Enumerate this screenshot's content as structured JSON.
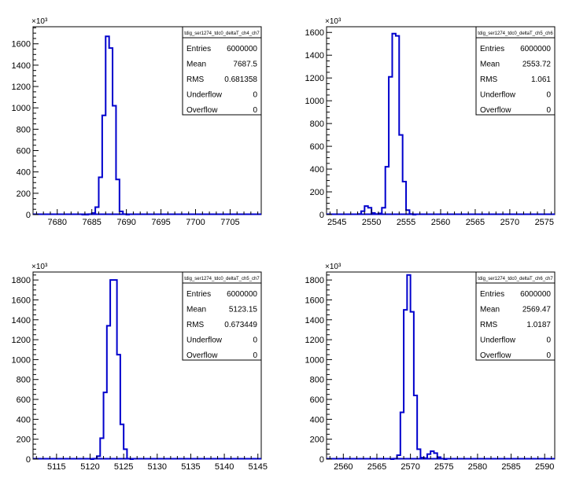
{
  "chart_data": [
    {
      "type": "histogram",
      "name": "tdig_ser1274_tdc0_deltaT_ch4_ch7",
      "xlim": [
        7676.5,
        7709.5
      ],
      "ylim": [
        0,
        1760
      ],
      "xticks": [
        "7680",
        "7685",
        "7690",
        "7695",
        "7700",
        "7705"
      ],
      "xtick_values": [
        7680,
        7685,
        7690,
        7695,
        7700,
        7705
      ],
      "yticks": [
        "0",
        "200",
        "400",
        "600",
        "800",
        "1000",
        "1200",
        "1400",
        "1600"
      ],
      "ytick_values": [
        0,
        200,
        400,
        600,
        800,
        1000,
        1200,
        1400,
        1600
      ],
      "y_exponent": "×10³",
      "x": [
        7683.5,
        7684.0,
        7684.5,
        7685.0,
        7685.5,
        7686.0,
        7686.5,
        7687.0,
        7687.5,
        7688.0,
        7688.5,
        7689.0,
        7689.5,
        7690.0
      ],
      "values": [
        0,
        0,
        5,
        15,
        70,
        350,
        930,
        1670,
        1560,
        1020,
        330,
        30,
        5,
        0
      ],
      "stats": {
        "title": "tdig_ser1274_tdc0_deltaT_ch4_ch7",
        "rows": [
          {
            "label": "Entries",
            "value": "6000000"
          },
          {
            "label": "Mean",
            "value": "7687.5"
          },
          {
            "label": "RMS",
            "value": "0.681358"
          },
          {
            "label": "Underflow",
            "value": "0"
          },
          {
            "label": "Overflow",
            "value": "0"
          }
        ]
      }
    },
    {
      "type": "histogram",
      "name": "tdig_ser1274_tdc0_deltaT_ch5_ch6",
      "xlim": [
        2543.5,
        2576.5
      ],
      "ylim": [
        0,
        1650
      ],
      "xticks": [
        "2545",
        "2550",
        "2555",
        "2560",
        "2565",
        "2570",
        "2575"
      ],
      "xtick_values": [
        2545,
        2550,
        2555,
        2560,
        2565,
        2570,
        2575
      ],
      "yticks": [
        "0",
        "200",
        "400",
        "600",
        "800",
        "1000",
        "1200",
        "1400",
        "1600"
      ],
      "ytick_values": [
        0,
        200,
        400,
        600,
        800,
        1000,
        1200,
        1400,
        1600
      ],
      "y_exponent": "×10³",
      "x": [
        2548.0,
        2548.5,
        2549.0,
        2549.5,
        2550.0,
        2550.5,
        2551.0,
        2551.5,
        2552.0,
        2552.5,
        2553.0,
        2553.5,
        2554.0,
        2554.5,
        2555.0,
        2555.5,
        2556.0
      ],
      "values": [
        5,
        30,
        75,
        60,
        15,
        5,
        10,
        60,
        420,
        1210,
        1590,
        1570,
        700,
        290,
        40,
        5,
        0
      ],
      "stats": {
        "title": "tdig_ser1274_tdc0_deltaT_ch5_ch6",
        "rows": [
          {
            "label": "Entries",
            "value": "6000000"
          },
          {
            "label": "Mean",
            "value": "2553.72"
          },
          {
            "label": "RMS",
            "value": "1.061"
          },
          {
            "label": "Underflow",
            "value": "0"
          },
          {
            "label": "Overflow",
            "value": "0"
          }
        ]
      }
    },
    {
      "type": "histogram",
      "name": "tdig_ser1274_tdc0_deltaT_ch5_ch7",
      "xlim": [
        5111.5,
        5145.5
      ],
      "ylim": [
        0,
        1880
      ],
      "xticks": [
        "5115",
        "5120",
        "5125",
        "5130",
        "5135",
        "5140",
        "5145"
      ],
      "xtick_values": [
        5115,
        5120,
        5125,
        5130,
        5135,
        5140,
        5145
      ],
      "yticks": [
        "0",
        "200",
        "400",
        "600",
        "800",
        "1000",
        "1200",
        "1400",
        "1600",
        "1800"
      ],
      "ytick_values": [
        0,
        200,
        400,
        600,
        800,
        1000,
        1200,
        1400,
        1600,
        1800
      ],
      "y_exponent": "×10³",
      "x": [
        5120.0,
        5120.5,
        5121.0,
        5121.5,
        5122.0,
        5122.5,
        5123.0,
        5123.5,
        5124.0,
        5124.5,
        5125.0,
        5125.5,
        5126.0
      ],
      "values": [
        0,
        5,
        30,
        210,
        670,
        1340,
        1800,
        1800,
        1050,
        350,
        100,
        5,
        0
      ],
      "stats": {
        "title": "tdig_ser1274_tdc0_deltaT_ch5_ch7",
        "rows": [
          {
            "label": "Entries",
            "value": "6000000"
          },
          {
            "label": "Mean",
            "value": "5123.15"
          },
          {
            "label": "RMS",
            "value": "0.673449"
          },
          {
            "label": "Underflow",
            "value": "0"
          },
          {
            "label": "Overflow",
            "value": "0"
          }
        ]
      }
    },
    {
      "type": "histogram",
      "name": "tdig_ser1274_tdc0_deltaT_ch6_ch7",
      "xlim": [
        2557.5,
        2591.5
      ],
      "ylim": [
        0,
        1880
      ],
      "xticks": [
        "2560",
        "2565",
        "2570",
        "2575",
        "2580",
        "2585",
        "2590"
      ],
      "xtick_values": [
        2560,
        2565,
        2570,
        2575,
        2580,
        2585,
        2590
      ],
      "yticks": [
        "0",
        "200",
        "400",
        "600",
        "800",
        "1000",
        "1200",
        "1400",
        "1600",
        "1800"
      ],
      "ytick_values": [
        0,
        200,
        400,
        600,
        800,
        1000,
        1200,
        1400,
        1600,
        1800
      ],
      "y_exponent": "×10³",
      "x": [
        2567.0,
        2567.5,
        2568.0,
        2568.5,
        2569.0,
        2569.5,
        2570.0,
        2570.5,
        2571.0,
        2571.5,
        2572.0,
        2572.5,
        2573.0,
        2573.5,
        2574.0,
        2574.5,
        2575.0
      ],
      "values": [
        0,
        5,
        40,
        470,
        1500,
        1850,
        1480,
        640,
        100,
        15,
        10,
        50,
        80,
        60,
        20,
        5,
        0
      ],
      "stats": {
        "title": "tdig_ser1274_tdc0_deltaT_ch6_ch7",
        "rows": [
          {
            "label": "Entries",
            "value": "6000000"
          },
          {
            "label": "Mean",
            "value": "2569.47"
          },
          {
            "label": "RMS",
            "value": "1.0187"
          },
          {
            "label": "Underflow",
            "value": "0"
          },
          {
            "label": "Overflow",
            "value": "0"
          }
        ]
      }
    }
  ],
  "style": {
    "line_color": "#0000cc",
    "axis_color": "#000000",
    "background": "#ffffff"
  }
}
